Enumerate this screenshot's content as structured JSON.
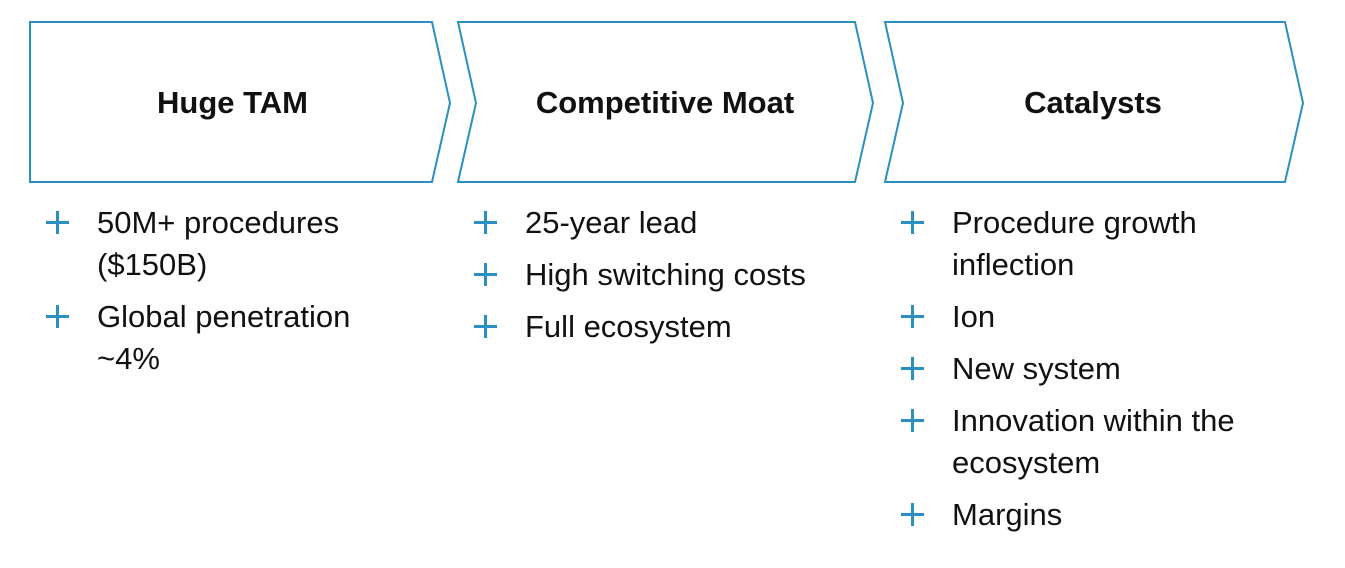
{
  "colors": {
    "chevron_stroke": "#2b8fc2",
    "plus_icon": "#2b8fc2",
    "text": "#111111"
  },
  "columns": [
    {
      "title": "Huge TAM",
      "items": [
        "50M+ procedures ($150B)",
        "Global penetration ~4%"
      ]
    },
    {
      "title": "Competitive Moat",
      "items": [
        "25-year lead",
        "High switching costs",
        "Full ecosystem"
      ]
    },
    {
      "title": "Catalysts",
      "items": [
        "Procedure growth inflection",
        "Ion",
        "New system",
        "Innovation within the ecosystem",
        "Margins"
      ]
    }
  ]
}
